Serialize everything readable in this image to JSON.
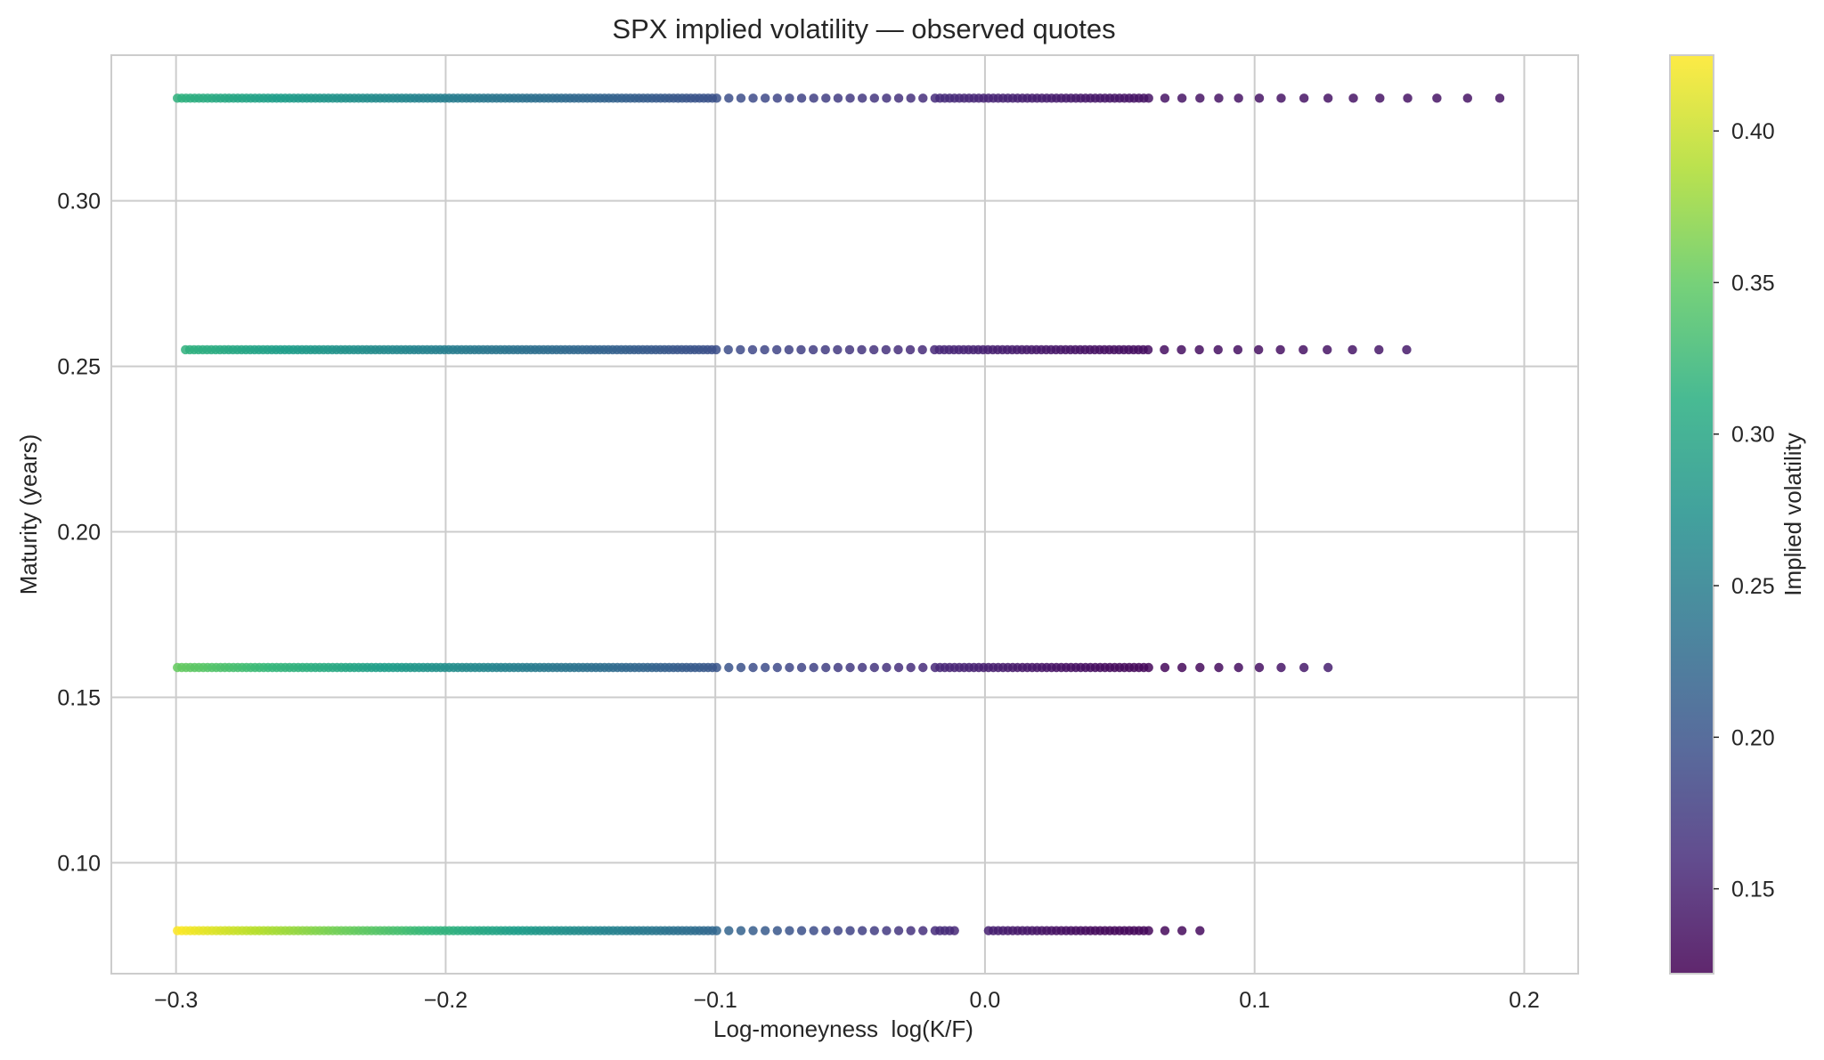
{
  "chart_data": {
    "type": "scatter",
    "title": "SPX implied volatility — observed quotes",
    "xlabel": "Log-moneyness  log(K/F)",
    "ylabel": "Maturity (years)",
    "colorbar_label": "Implied volatility",
    "xlim": [
      -0.324,
      0.22
    ],
    "ylim": [
      0.0665,
      0.344
    ],
    "xticks": [
      -0.3,
      -0.2,
      -0.1,
      0.0,
      0.1,
      0.2
    ],
    "xtick_labels": [
      "−0.3",
      "−0.2",
      "−0.1",
      "0.0",
      "0.1",
      "0.2"
    ],
    "yticks": [
      0.1,
      0.15,
      0.2,
      0.25,
      0.3
    ],
    "ytick_labels": [
      "0.10",
      "0.15",
      "0.20",
      "0.25",
      "0.30"
    ],
    "clim": [
      0.122,
      0.425
    ],
    "cticks": [
      0.15,
      0.2,
      0.25,
      0.3,
      0.35,
      0.4
    ],
    "ctick_labels": [
      "0.15",
      "0.20",
      "0.25",
      "0.30",
      "0.35",
      "0.40"
    ],
    "colormap": "viridis",
    "grid": true,
    "series": [
      {
        "maturity": 0.0795,
        "x_min": -0.2995,
        "x_max": 0.085,
        "iv_left": 0.425,
        "iv_min": 0.128,
        "x_at_min": 0.05,
        "iv_right": 0.132,
        "gaps": [
          [
            -0.011,
            0.0
          ]
        ]
      },
      {
        "maturity": 0.159,
        "x_min": -0.2995,
        "x_max": 0.1325,
        "iv_left": 0.352,
        "iv_min": 0.128,
        "x_at_min": 0.06,
        "iv_right": 0.152
      },
      {
        "maturity": 0.255,
        "x_min": -0.2965,
        "x_max": 0.164,
        "iv_left": 0.315,
        "iv_min": 0.133,
        "x_at_min": 0.06,
        "iv_right": 0.145
      },
      {
        "maturity": 0.331,
        "x_min": -0.2995,
        "x_max": 0.1955,
        "iv_left": 0.315,
        "iv_min": 0.138,
        "x_at_min": 0.06,
        "iv_right": 0.138
      }
    ]
  }
}
